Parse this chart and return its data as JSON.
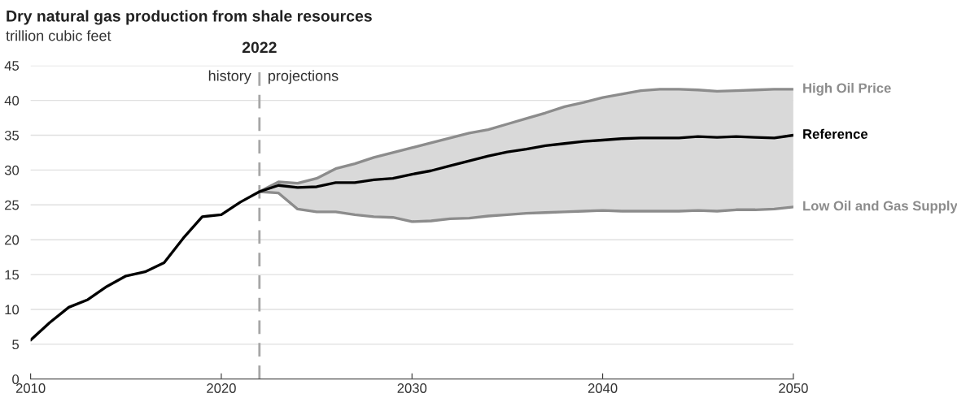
{
  "chart_data": {
    "type": "line",
    "title": "Dry natural gas production from shale resources",
    "subtitle": "trillion cubic feet",
    "x": [
      2010,
      2011,
      2012,
      2013,
      2014,
      2015,
      2016,
      2017,
      2018,
      2019,
      2020,
      2021,
      2022,
      2023,
      2024,
      2025,
      2026,
      2027,
      2028,
      2029,
      2030,
      2031,
      2032,
      2033,
      2034,
      2035,
      2036,
      2037,
      2038,
      2039,
      2040,
      2041,
      2042,
      2043,
      2044,
      2045,
      2046,
      2047,
      2048,
      2049,
      2050
    ],
    "series": [
      {
        "name": "High Oil Price",
        "color": "#8c8c8c",
        "values": [
          null,
          null,
          null,
          null,
          null,
          null,
          null,
          null,
          null,
          null,
          null,
          null,
          26.9,
          28.3,
          28.1,
          28.8,
          30.2,
          30.9,
          31.8,
          32.5,
          33.2,
          33.9,
          34.6,
          35.3,
          35.8,
          36.6,
          37.4,
          38.2,
          39.1,
          39.7,
          40.4,
          40.9,
          41.4,
          41.6,
          41.6,
          41.5,
          41.3,
          41.4,
          41.5,
          41.6,
          41.6
        ]
      },
      {
        "name": "Reference",
        "color": "#000000",
        "values": [
          5.6,
          8.1,
          10.3,
          11.4,
          13.3,
          14.8,
          15.4,
          16.7,
          20.2,
          23.3,
          23.6,
          25.4,
          26.9,
          27.8,
          27.5,
          27.6,
          28.2,
          28.2,
          28.6,
          28.8,
          29.4,
          29.9,
          30.6,
          31.3,
          32.0,
          32.6,
          33.0,
          33.5,
          33.8,
          34.1,
          34.3,
          34.5,
          34.6,
          34.6,
          34.6,
          34.8,
          34.7,
          34.8,
          34.7,
          34.6,
          35.0
        ],
        "lower": [
          null,
          null,
          null,
          null,
          null,
          null,
          null,
          null,
          null,
          null,
          null,
          null,
          26.9,
          26.7,
          24.4,
          24.0,
          24.0,
          23.6,
          23.3,
          23.2,
          22.6,
          22.7,
          23.0,
          23.1,
          23.4,
          23.6,
          23.8,
          23.9,
          24.0,
          24.1,
          24.2,
          24.1,
          24.1,
          24.1,
          24.1,
          24.2,
          24.1,
          24.3,
          24.3,
          24.4,
          24.7
        ],
        "upper": [
          null,
          null,
          null,
          null,
          null,
          null,
          null,
          null,
          null,
          null,
          null,
          null,
          26.9,
          28.3,
          28.1,
          28.8,
          30.2,
          30.9,
          31.8,
          32.5,
          33.2,
          33.9,
          34.6,
          35.3,
          35.8,
          36.6,
          37.4,
          38.2,
          39.1,
          39.7,
          40.4,
          40.9,
          41.4,
          41.6,
          41.6,
          41.5,
          41.3,
          41.4,
          41.5,
          41.6,
          41.6
        ]
      },
      {
        "name": "Low Oil and Gas Supply",
        "color": "#8c8c8c",
        "values": [
          null,
          null,
          null,
          null,
          null,
          null,
          null,
          null,
          null,
          null,
          null,
          null,
          26.9,
          26.7,
          24.4,
          24.0,
          24.0,
          23.6,
          23.3,
          23.2,
          22.6,
          22.7,
          23.0,
          23.1,
          23.4,
          23.6,
          23.8,
          23.9,
          24.0,
          24.1,
          24.2,
          24.1,
          24.1,
          24.1,
          24.1,
          24.2,
          24.1,
          24.3,
          24.3,
          24.4,
          24.7
        ]
      }
    ],
    "xlim": [
      2010,
      2050
    ],
    "xticks": [
      2010,
      2020,
      2030,
      2040,
      2050
    ],
    "ylim": [
      0,
      45
    ],
    "yticks": [
      0,
      5,
      10,
      15,
      20,
      25,
      30,
      35,
      40,
      45
    ],
    "ref_lines": [
      {
        "axis": "x",
        "value": 2022,
        "label": "2022",
        "color": "#a6a6a6",
        "line_style": "dashed"
      }
    ],
    "annotations": [
      "history",
      "projections"
    ],
    "grid": "y",
    "legend": false,
    "marker": "none",
    "line_style": "solid"
  }
}
